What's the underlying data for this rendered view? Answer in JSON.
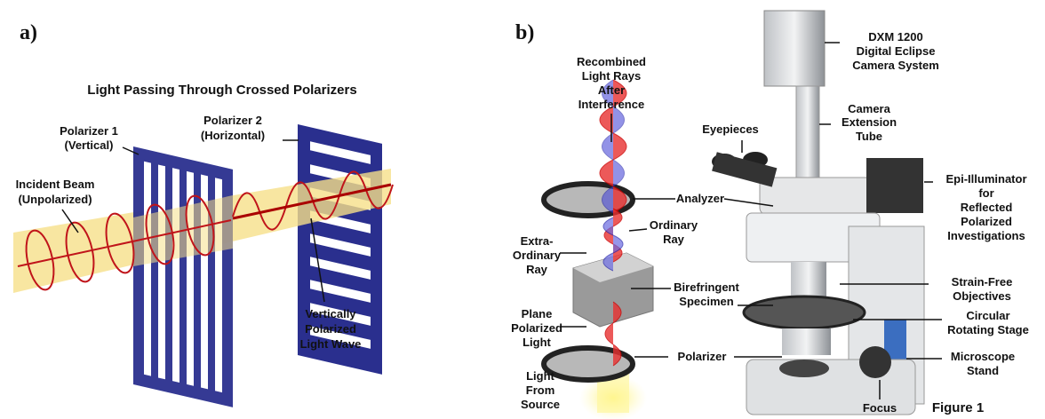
{
  "panel_a": {
    "label": "a)",
    "title": "Light Passing Through Crossed Polarizers",
    "callouts": [
      [
        "Polarizer 1",
        "(Vertical)"
      ],
      [
        "Polarizer 2",
        "(Horizontal)"
      ],
      [
        "Incident Beam",
        "(Unpolarized)"
      ],
      [
        "Vertically",
        "Polarized",
        "Light Wave"
      ]
    ]
  },
  "panel_b": {
    "label": "b)",
    "callouts": [
      [
        "Recombined",
        "Light Rays",
        "After",
        "Interference"
      ],
      [
        "DXM 1200",
        "Digital Eclipse",
        "Camera System"
      ],
      [
        "Camera",
        "Extension",
        "Tube"
      ],
      [
        "Eyepieces"
      ],
      [
        "Epi-Illuminator",
        "for",
        "Reflected",
        "Polarized",
        "Investigations"
      ],
      [
        "Analyzer"
      ],
      [
        "Ordinary",
        "Ray"
      ],
      [
        "Extra-",
        "Ordinary",
        "Ray"
      ],
      [
        "Birefringent",
        "Specimen"
      ],
      [
        "Strain-Free",
        "Objectives"
      ],
      [
        "Plane",
        "Polarized",
        "Light"
      ],
      [
        "Circular",
        "Rotating Stage"
      ],
      [
        "Polarizer"
      ],
      [
        "Microscope",
        "Stand"
      ],
      [
        "Light",
        "From",
        "Source"
      ],
      [
        "Focus"
      ]
    ],
    "figure_label": "Figure 1"
  }
}
